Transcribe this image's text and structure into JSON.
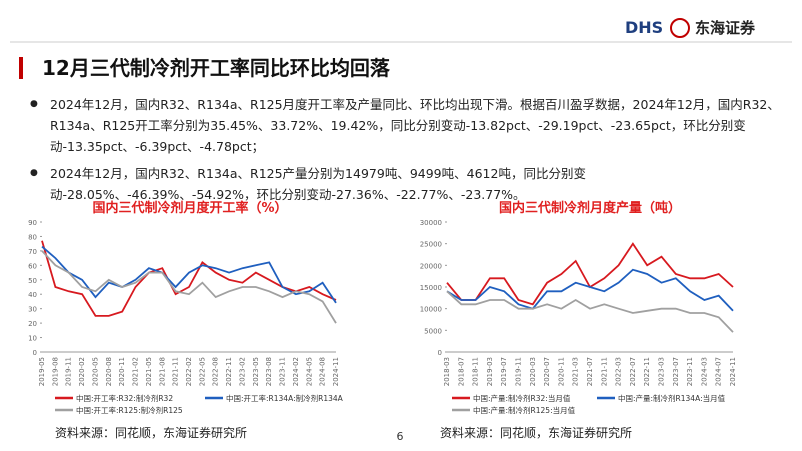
{
  "header": {
    "title": "12月三代制冷剂开工率同比环比均回落",
    "logo_latin": "DHS",
    "logo_cn": "东海证券"
  },
  "bullets": [
    "2024年12月，国内R32、R134a、R125月度开工率及产量同比、环比均出现下滑。根据百川盈孚数据，2024年12月，国内R32、R134a、R125开工率分别为35.45%、33.72%、19.42%，同比分别变动-13.82pct、-29.19pct、-23.65pct，环比分别变动-13.35pct、-6.39pct、-4.78pct；",
    "2024年12月，国内R32、R134a、R125产量分别为14979吨、9499吨、4612吨，同比分别变动-28.05%、-46.39%、-54.92%，环比分别变动-27.36%、-22.77%、-23.77%。"
  ],
  "chart_data": [
    {
      "type": "line",
      "title": "国内三代制冷剂月度开工率（%）",
      "categories": [
        "2019-05",
        "2019-08",
        "2019-11",
        "2020-02",
        "2020-05",
        "2020-08",
        "2020-11",
        "2021-02",
        "2021-05",
        "2021-08",
        "2021-11",
        "2022-02",
        "2022-05",
        "2022-08",
        "2022-11",
        "2023-02",
        "2023-05",
        "2023-08",
        "2023-11",
        "2024-02",
        "2024-05",
        "2024-08",
        "2024-11"
      ],
      "ylim": [
        0,
        90
      ],
      "yticks": [
        0,
        10,
        20,
        30,
        40,
        50,
        60,
        70,
        80,
        90
      ],
      "series": [
        {
          "name": "中国:开工率:R32:制冷剂R32",
          "color": "#d7191f",
          "values": [
            77,
            45,
            42,
            40,
            25,
            25,
            28,
            45,
            55,
            58,
            40,
            45,
            62,
            55,
            50,
            48,
            55,
            50,
            45,
            42,
            45,
            40,
            36
          ]
        },
        {
          "name": "中国:开工率:R134A:制冷剂R134A",
          "color": "#1f5fbf",
          "values": [
            73,
            65,
            55,
            50,
            38,
            48,
            45,
            50,
            58,
            55,
            45,
            55,
            60,
            58,
            55,
            58,
            60,
            62,
            45,
            40,
            42,
            48,
            34
          ]
        },
        {
          "name": "中国:开工率:R125:制冷剂R125",
          "color": "#a0a0a0",
          "values": [
            70,
            60,
            55,
            45,
            42,
            50,
            45,
            48,
            55,
            55,
            42,
            40,
            48,
            38,
            42,
            45,
            45,
            42,
            38,
            42,
            40,
            35,
            20
          ]
        }
      ],
      "source": "资料来源：同花顺，东海证券研究所"
    },
    {
      "type": "line",
      "title": "国内三代制冷剂月度产量（吨）",
      "categories": [
        "2018-03",
        "2018-07",
        "2018-11",
        "2019-03",
        "2019-07",
        "2019-11",
        "2020-03",
        "2020-07",
        "2020-11",
        "2021-03",
        "2021-07",
        "2021-11",
        "2022-03",
        "2022-07",
        "2022-11",
        "2023-03",
        "2023-07",
        "2023-11",
        "2024-03",
        "2024-07",
        "2024-11"
      ],
      "ylim": [
        0,
        30000
      ],
      "yticks": [
        0,
        5000,
        10000,
        15000,
        20000,
        25000,
        30000
      ],
      "series": [
        {
          "name": "中国:产量:制冷剂R32:当月值",
          "color": "#d7191f",
          "values": [
            16000,
            12000,
            12000,
            17000,
            17000,
            12000,
            11000,
            16000,
            18000,
            21000,
            15000,
            17000,
            20000,
            25000,
            20000,
            22000,
            18000,
            17000,
            17000,
            18000,
            15000
          ]
        },
        {
          "name": "中国:产量:制冷剂R134A:当月值",
          "color": "#1f5fbf",
          "values": [
            14000,
            12000,
            12000,
            15000,
            14000,
            11000,
            10000,
            14000,
            14000,
            16000,
            15000,
            14000,
            16000,
            19000,
            18000,
            16000,
            17000,
            14000,
            12000,
            13000,
            9500
          ]
        },
        {
          "name": "中国:产量:制冷剂R125:当月值",
          "color": "#a0a0a0",
          "values": [
            14000,
            11000,
            11000,
            12000,
            12000,
            10000,
            10000,
            11000,
            10000,
            12000,
            10000,
            11000,
            10000,
            9000,
            9500,
            10000,
            10000,
            9000,
            9000,
            8000,
            4600
          ]
        }
      ],
      "source": "资料来源：同花顺，东海证券研究所"
    }
  ],
  "page_number": "6"
}
